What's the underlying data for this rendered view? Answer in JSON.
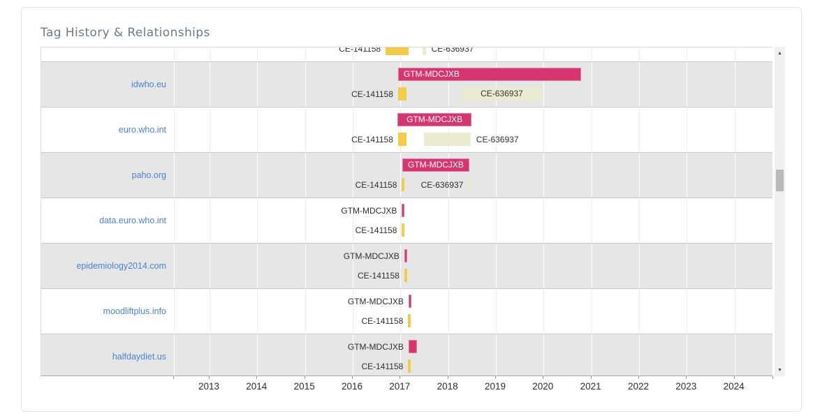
{
  "card": {
    "title": "Tag History & Relationships"
  },
  "colors": {
    "gtm": "#d6356f",
    "ce_yellow": "#f3cb46",
    "ce_beige": "#ebebd2",
    "row_shaded": "#e6e6e6",
    "link_blue": "#4a83d4",
    "title_gray": "#6d7a85"
  },
  "scrollbar": {
    "up_glyph": "▲",
    "down_glyph": "▼"
  },
  "chart_data": {
    "type": "gantt-timeline",
    "title": "Tag History & Relationships",
    "xlabel": "",
    "ylabel": "",
    "x_axis": {
      "years": [
        2013,
        2014,
        2015,
        2016,
        2017,
        2018,
        2019,
        2020,
        2021,
        2022,
        2023,
        2024
      ],
      "range_years": [
        2012.25,
        2024.85
      ],
      "grid": true
    },
    "tags": [
      "GTM-MDCJXB",
      "CE-141158",
      "CE-636937"
    ],
    "rows": [
      {
        "domain": "",
        "cut_top": true,
        "bars": [
          {
            "tag": "CE-141158",
            "color": "yellow",
            "line": 1,
            "start": 2016.69,
            "end": 2017.17,
            "label_pos": "left"
          },
          {
            "tag": "CE-636937",
            "color": "beige",
            "line": 1,
            "start": 2017.46,
            "end": 2017.53,
            "label_pos": "right"
          }
        ]
      },
      {
        "domain": "idwho.eu",
        "bars": [
          {
            "tag": "GTM-MDCJXB",
            "color": "gtm",
            "line": 0,
            "start": 2016.95,
            "end": 2020.79,
            "label_pos": "inside",
            "align": "left"
          },
          {
            "tag": "CE-141158",
            "color": "yellow",
            "line": 1,
            "start": 2016.95,
            "end": 2017.13,
            "label_pos": "left"
          },
          {
            "tag": "CE-636937",
            "color": "beige",
            "line": 1,
            "start": 2018.3,
            "end": 2019.95,
            "label_pos": "inside",
            "align": "center"
          }
        ]
      },
      {
        "domain": "euro.who.int",
        "bars": [
          {
            "tag": "GTM-MDCJXB",
            "color": "gtm",
            "line": 0,
            "start": 2016.94,
            "end": 2018.49,
            "label_pos": "inside",
            "align": "center"
          },
          {
            "tag": "CE-141158",
            "color": "yellow",
            "line": 1,
            "start": 2016.95,
            "end": 2017.13,
            "label_pos": "left"
          },
          {
            "tag": "CE-636937",
            "color": "beige",
            "line": 1,
            "start": 2017.49,
            "end": 2018.47,
            "label_pos": "right"
          }
        ]
      },
      {
        "domain": "paho.org",
        "bars": [
          {
            "tag": "GTM-MDCJXB",
            "color": "gtm",
            "line": 0,
            "start": 2017.04,
            "end": 2018.44,
            "label_pos": "inside",
            "align": "center"
          },
          {
            "tag": "CE-141158",
            "color": "yellow",
            "line": 1,
            "start": 2017.03,
            "end": 2017.09,
            "label_pos": "left"
          },
          {
            "tag": "CE-636937",
            "color": "beige",
            "line": 1,
            "start": 2018.42,
            "end": 2018.48,
            "label_pos": "left"
          }
        ]
      },
      {
        "domain": "data.euro.who.int",
        "bars": [
          {
            "tag": "GTM-MDCJXB",
            "color": "gtm",
            "line": 0,
            "start": 2017.03,
            "end": 2017.09,
            "label_pos": "left"
          },
          {
            "tag": "CE-141158",
            "color": "yellow",
            "line": 1,
            "start": 2017.03,
            "end": 2017.09,
            "label_pos": "left"
          }
        ]
      },
      {
        "domain": "epidemiology2014.com",
        "bars": [
          {
            "tag": "GTM-MDCJXB",
            "color": "gtm",
            "line": 0,
            "start": 2017.08,
            "end": 2017.14,
            "label_pos": "left"
          },
          {
            "tag": "CE-141158",
            "color": "yellow",
            "line": 1,
            "start": 2017.08,
            "end": 2017.14,
            "label_pos": "left"
          }
        ]
      },
      {
        "domain": "moodliftplus.info",
        "bars": [
          {
            "tag": "GTM-MDCJXB",
            "color": "gtm",
            "line": 0,
            "start": 2017.17,
            "end": 2017.23,
            "label_pos": "left"
          },
          {
            "tag": "CE-141158",
            "color": "yellow",
            "line": 1,
            "start": 2017.16,
            "end": 2017.22,
            "label_pos": "left"
          }
        ]
      },
      {
        "domain": "halfdaydiet.us",
        "bars": [
          {
            "tag": "GTM-MDCJXB",
            "color": "gtm",
            "line": 0,
            "start": 2017.17,
            "end": 2017.35,
            "label_pos": "left"
          },
          {
            "tag": "CE-141158",
            "color": "yellow",
            "line": 1,
            "start": 2017.16,
            "end": 2017.22,
            "label_pos": "left"
          }
        ]
      }
    ]
  }
}
